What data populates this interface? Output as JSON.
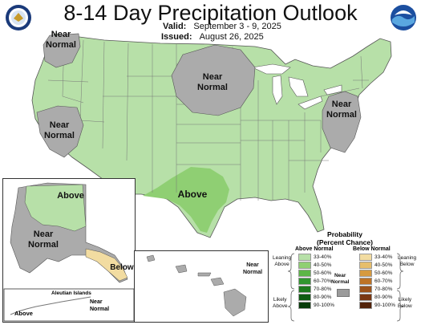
{
  "header": {
    "title": "8-14 Day Precipitation Outlook",
    "valid_label": "Valid:",
    "valid_value": "September 3 - 9, 2025",
    "issued_label": "Issued:",
    "issued_value": "August 26, 2025"
  },
  "logos": {
    "left": "DOC seal",
    "right": "NOAA"
  },
  "map_labels": {
    "nw": "Near\nNormal",
    "ca": "Near\nNormal",
    "mw": "Near\nNormal",
    "ne": "Near\nNormal",
    "tx": "Above",
    "ak_above": "Above",
    "ak_near": "Near\nNormal",
    "ak_below": "Below",
    "hi_near": "Near\nNormal",
    "aleutian_title": "Aleutian Islands",
    "aleutian_above": "Above",
    "aleutian_near": "Near\nNormal"
  },
  "legend": {
    "title": "Probability\n(Percent Chance)",
    "above_title": "Above Normal",
    "below_title": "Below Normal",
    "near_title": "Near\nNormal",
    "leaning_above": "Leaning\nAbove",
    "likely_above": "Likely\nAbove",
    "leaning_below": "Leaning\nBelow",
    "likely_below": "Likely\nBelow",
    "above_items": [
      {
        "label": "33-40%",
        "color": "#b7e0a8"
      },
      {
        "label": "40-50%",
        "color": "#8fcf73"
      },
      {
        "label": "50-60%",
        "color": "#5cb646"
      },
      {
        "label": "60-70%",
        "color": "#31962f"
      },
      {
        "label": "70-80%",
        "color": "#1d7a1d"
      },
      {
        "label": "80-90%",
        "color": "#0f5c12"
      },
      {
        "label": "90-100%",
        "color": "#063b09"
      }
    ],
    "below_items": [
      {
        "label": "33-40%",
        "color": "#f2dca1"
      },
      {
        "label": "40-50%",
        "color": "#e6be6c"
      },
      {
        "label": "50-60%",
        "color": "#d69a3f"
      },
      {
        "label": "60-70%",
        "color": "#bd7326"
      },
      {
        "label": "70-80%",
        "color": "#9c521a"
      },
      {
        "label": "80-90%",
        "color": "#7a3712"
      },
      {
        "label": "90-100%",
        "color": "#52230a"
      }
    ],
    "near_color": "#9b9b9b"
  },
  "colors": {
    "above_light": "#b7e0a8",
    "above_mid": "#8fcf73",
    "near": "#ababab",
    "below_light": "#f2dca1",
    "ocean": "#ffffff",
    "border": "#555555"
  }
}
